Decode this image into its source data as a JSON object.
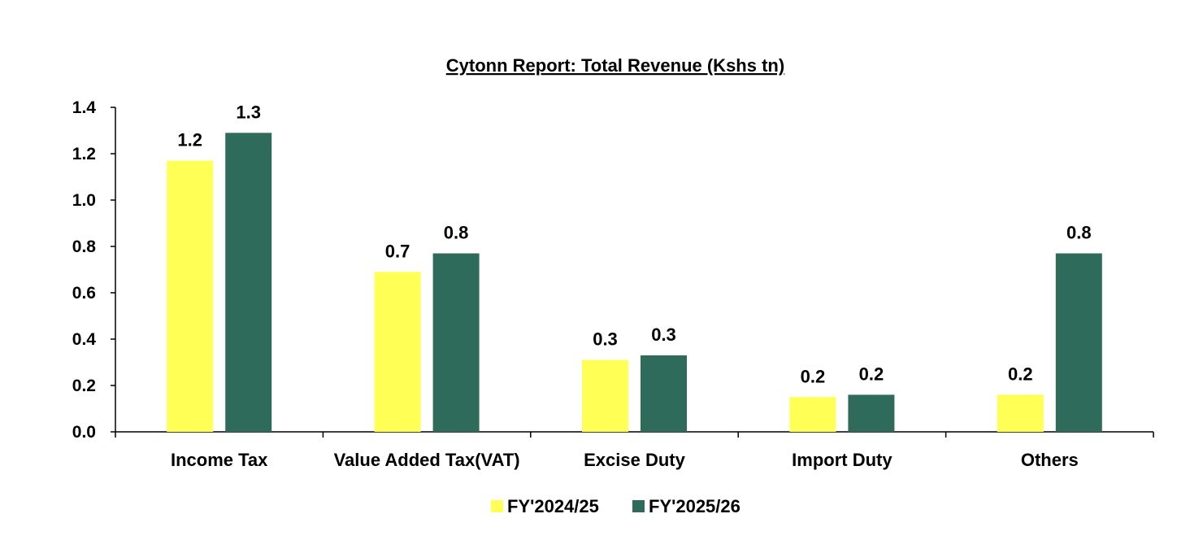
{
  "chart_data": {
    "type": "bar",
    "title": "Cytonn Report: Total Revenue (Kshs tn)",
    "xlabel": "",
    "ylabel": "",
    "ylim": [
      0,
      1.4
    ],
    "yticks": [
      "0.0",
      "0.2",
      "0.4",
      "0.6",
      "0.8",
      "1.0",
      "1.2",
      "1.4"
    ],
    "grid": false,
    "legend_position": "bottom",
    "categories": [
      "Income Tax",
      "Value Added Tax(VAT)",
      "Excise Duty",
      "Import Duty",
      "Others"
    ],
    "series": [
      {
        "name": "FY'2024/25",
        "color": "#FFFF55",
        "values": [
          1.17,
          0.69,
          0.31,
          0.15,
          0.16
        ],
        "labels": [
          "1.2",
          "0.7",
          "0.3",
          "0.2",
          "0.2"
        ]
      },
      {
        "name": "FY'2025/26",
        "color": "#2E6B5B",
        "values": [
          1.29,
          0.77,
          0.33,
          0.16,
          0.77
        ],
        "labels": [
          "1.3",
          "0.8",
          "0.3",
          "0.2",
          "0.8"
        ]
      }
    ]
  }
}
